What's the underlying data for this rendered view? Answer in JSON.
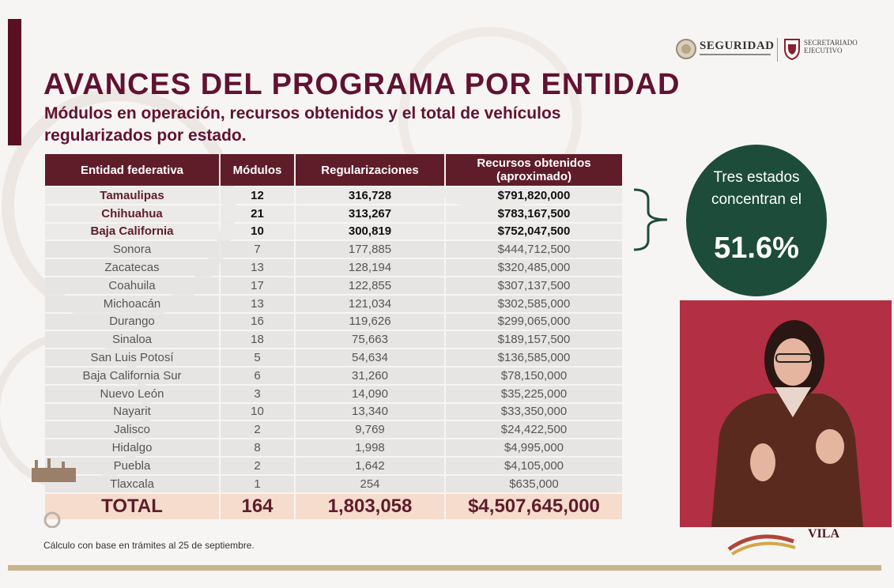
{
  "header": {
    "title": "AVANCES DEL PROGRAMA POR ENTIDAD",
    "subtitle": "Módulos en operación, recursos obtenidos y el total de vehículos regularizados por estado."
  },
  "logos": {
    "seguridad": "SEGURIDAD",
    "secretariado": [
      "SECRETARIADO",
      "EJECUTIVO"
    ],
    "bottom_brand": "VILA"
  },
  "table": {
    "headers": [
      "Entidad federativa",
      "Módulos",
      "Regularizaciones",
      "Recursos obtenidos\n(aproximado)"
    ],
    "top_rows": [
      [
        "Tamaulipas",
        "12",
        "316,728",
        "$791,820,000"
      ],
      [
        "Chihuahua",
        "21",
        "313,267",
        "$783,167,500"
      ],
      [
        "Baja California",
        "10",
        "300,819",
        "$752,047,500"
      ]
    ],
    "rows": [
      [
        "Sonora",
        "7",
        "177,885",
        "$444,712,500"
      ],
      [
        "Zacatecas",
        "13",
        "128,194",
        "$320,485,000"
      ],
      [
        "Coahuila",
        "17",
        "122,855",
        "$307,137,500"
      ],
      [
        "Michoacán",
        "13",
        "121,034",
        "$302,585,000"
      ],
      [
        "Durango",
        "16",
        "119,626",
        "$299,065,000"
      ],
      [
        "Sinaloa",
        "18",
        "75,663",
        "$189,157,500"
      ],
      [
        "San Luis Potosí",
        "5",
        "54,634",
        "$136,585,000"
      ],
      [
        "Baja California Sur",
        "6",
        "31,260",
        "$78,150,000"
      ],
      [
        "Nuevo León",
        "3",
        "14,090",
        "$35,225,000"
      ],
      [
        "Nayarit",
        "10",
        "13,340",
        "$33,350,000"
      ],
      [
        "Jalisco",
        "2",
        "9,769",
        "$24,422,500"
      ],
      [
        "Hidalgo",
        "8",
        "1,998",
        "$4,995,000"
      ],
      [
        "Puebla",
        "2",
        "1,642",
        "$4,105,000"
      ],
      [
        "Tlaxcala",
        "1",
        "254",
        "$635,000"
      ]
    ],
    "total": [
      "TOTAL",
      "164",
      "1,803,058",
      "$4,507,645,000"
    ]
  },
  "callout": {
    "text": "Tres estados concentran el",
    "percent": "51.6%"
  },
  "footnote": "Cálculo con base en trámites al 25 de septiembre.",
  "colors": {
    "maroon": "#5f1d2a",
    "green_circle": "#1d4c3a",
    "total_bg": "#f6dccd",
    "video_bg": "#b32f44",
    "gold": "#c9b48a"
  },
  "icons": [
    "seguridad-seal-icon",
    "sesnsp-shield-icon",
    "brace-icon",
    "interpreter-video"
  ]
}
